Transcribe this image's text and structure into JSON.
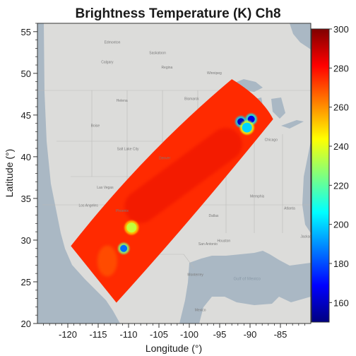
{
  "chart_data": {
    "type": "heatmap",
    "title": "Brightness Temperature (K) Ch8",
    "xlabel": "Longitude (°)",
    "ylabel": "Latitude (°)",
    "xlim": [
      -125,
      -80
    ],
    "ylim": [
      20,
      56
    ],
    "xticks": [
      -120,
      -115,
      -110,
      -105,
      -100,
      -95,
      -90,
      -85
    ],
    "yticks": [
      20,
      25,
      30,
      35,
      40,
      45,
      50,
      55
    ],
    "colorbar": {
      "min": 150,
      "max": 300,
      "ticks": [
        160,
        180,
        200,
        220,
        240,
        260,
        280,
        300
      ],
      "colormap": "jet",
      "colors": [
        "#00007f",
        "#0000ff",
        "#007fff",
        "#00ffff",
        "#7fff7f",
        "#ffff00",
        "#ff7f00",
        "#ff0000",
        "#7f0000"
      ]
    },
    "swath": {
      "description_values_K": {
        "typical": 275,
        "range": [
          155,
          290
        ]
      },
      "corners_lonlat": [
        [
          -119.5,
          29.3
        ],
        [
          -93.0,
          49.3
        ],
        [
          -86.2,
          44.5
        ],
        [
          -112.0,
          22.5
        ]
      ],
      "cold_cloud_cells": [
        {
          "lon": -91.5,
          "lat": 44.2,
          "value_K": 160
        },
        {
          "lon": -89.8,
          "lat": 44.5,
          "value_K": 165
        },
        {
          "lon": -90.5,
          "lat": 43.5,
          "value_K": 200
        },
        {
          "lon": -109.5,
          "lat": 31.5,
          "value_K": 235
        },
        {
          "lon": -110.8,
          "lat": 29.0,
          "value_K": 185
        }
      ]
    },
    "basemap_labels": {
      "cities": [
        "Edmonton",
        "Saskatoon",
        "Calgary",
        "Regina",
        "Winnipeg",
        "Helena",
        "Bismarck",
        "Boise",
        "Salt Lake City",
        "Denver",
        "Las Vegas",
        "Los Angeles",
        "Phoenix",
        "Dallas",
        "Houston",
        "San Antonio",
        "Memphis",
        "Atlanta",
        "Jacksonville",
        "Chicago",
        "Monterrey",
        "Mexico"
      ],
      "sea": [
        "Gulf of Mexico"
      ]
    }
  }
}
